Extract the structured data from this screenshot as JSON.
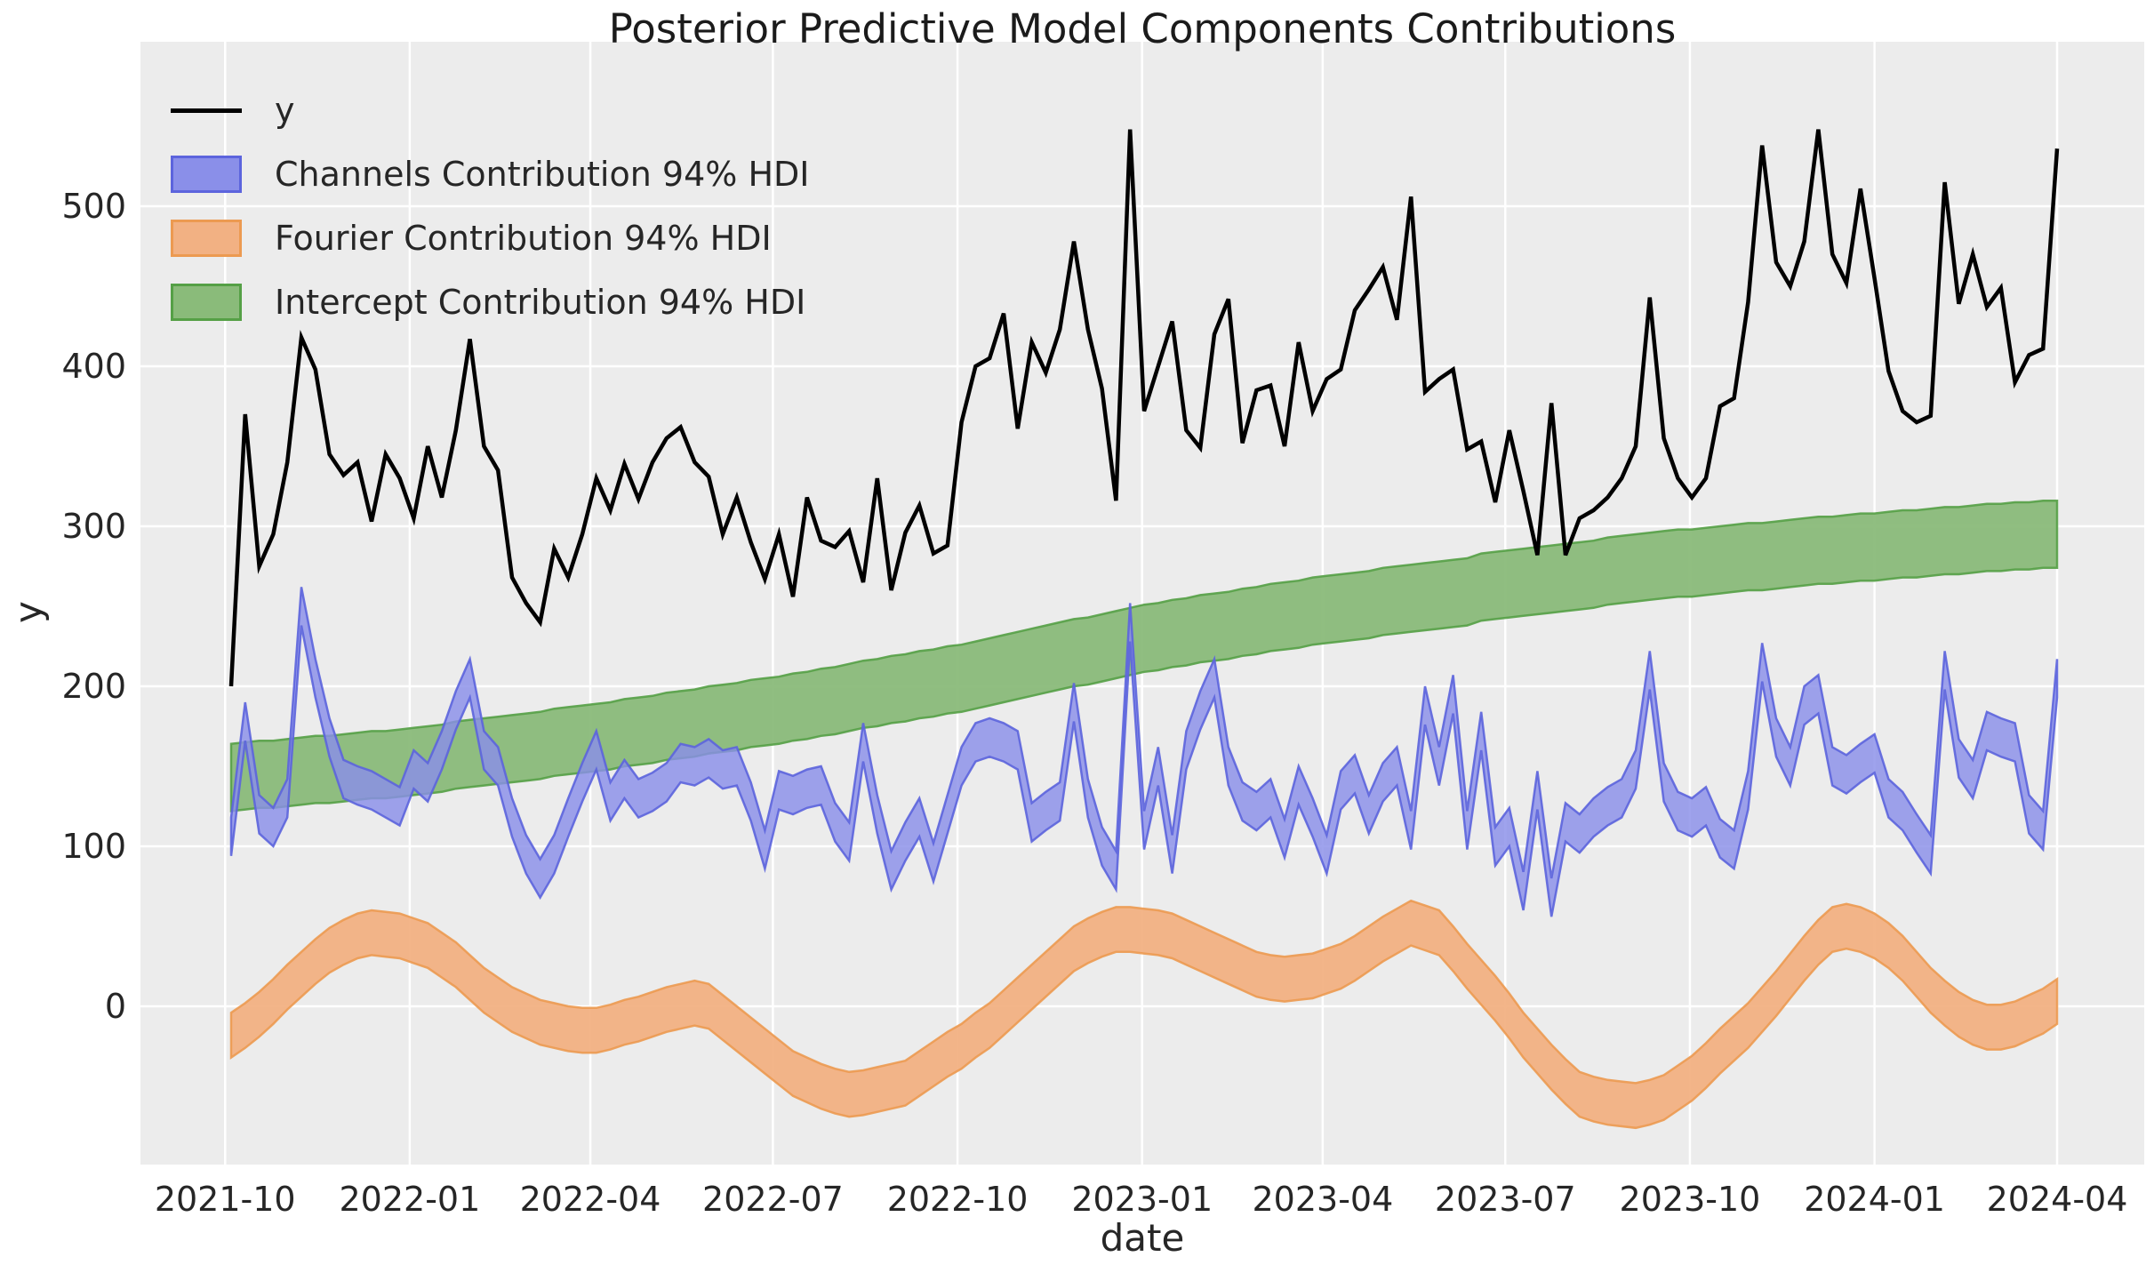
{
  "title": "Posterior Predictive Model Components Contributions",
  "axes": {
    "xlabel": "date",
    "ylabel": "y",
    "x_tick_labels": [
      "2021-10",
      "2022-01",
      "2022-04",
      "2022-07",
      "2022-10",
      "2023-01",
      "2023-04",
      "2023-07",
      "2023-10",
      "2024-01",
      "2024-04"
    ],
    "y_tick_labels": [
      "0",
      "100",
      "200",
      "300",
      "400",
      "500"
    ],
    "y_ticks": [
      0,
      100,
      200,
      300,
      400,
      500
    ]
  },
  "legend": {
    "items": [
      {
        "label": "y",
        "marker": "line",
        "fill": "#000000",
        "edge": "#000000"
      },
      {
        "label": "Channels Contribution 94% HDI",
        "marker": "patch",
        "fill": "#8a8fe9",
        "edge": "#5c64dd"
      },
      {
        "label": "Fourier Contribution 94% HDI",
        "marker": "patch",
        "fill": "#f2b183",
        "edge": "#ec9a51"
      },
      {
        "label": "Intercept Contribution 94% HDI",
        "marker": "patch",
        "fill": "#8abb7a",
        "edge": "#55a046"
      }
    ]
  },
  "colors": {
    "figure_bg": "#ffffff",
    "axes_bg": "#ececec",
    "grid": "#ffffff",
    "text": "#262626",
    "y_line": "#000000",
    "channels_fill": "#8a8fe9",
    "channels_edge": "#5c64dd",
    "fourier_fill": "#f2b183",
    "fourier_edge": "#ec9a51",
    "intercept_fill": "#8abb7a",
    "intercept_edge": "#55a046"
  },
  "chart_data": {
    "type": "line+hdi-bands",
    "x_start_date": "2021-10-04",
    "x_freq_days": 7,
    "n_points": 131,
    "x_tick_day_offsets": [
      -3,
      89,
      179,
      270,
      362,
      454,
      544,
      635,
      727,
      819,
      910
    ],
    "ylim": [
      -97,
      600
    ],
    "grid": true,
    "legend_position": "upper left",
    "series": [
      {
        "name": "y",
        "type": "line",
        "values": [
          200,
          370,
          275,
          295,
          340,
          418,
          398,
          345,
          332,
          340,
          303,
          345,
          330,
          305,
          350,
          318,
          360,
          417,
          350,
          335,
          268,
          252,
          240,
          286,
          268,
          295,
          330,
          310,
          339,
          317,
          340,
          355,
          362,
          340,
          331,
          295,
          318,
          290,
          267,
          295,
          256,
          318,
          291,
          287,
          297,
          265,
          330,
          260,
          296,
          313,
          283,
          288,
          365,
          400,
          405,
          433,
          361,
          415,
          396,
          423,
          478,
          423,
          386,
          316,
          548,
          372,
          400,
          428,
          360,
          349,
          420,
          442,
          352,
          385,
          388,
          350,
          415,
          372,
          392,
          398,
          435,
          448,
          462,
          429,
          506,
          384,
          392,
          398,
          348,
          353,
          315,
          360,
          322,
          282,
          377,
          282,
          305,
          310,
          318,
          330,
          350,
          443,
          355,
          330,
          318,
          330,
          375,
          380,
          440,
          538,
          465,
          450,
          478,
          548,
          470,
          452,
          511,
          455,
          397,
          372,
          365,
          369,
          515,
          439,
          470,
          437,
          449,
          390,
          407,
          411,
          536
        ]
      },
      {
        "name": "Channels Contribution 94% HDI",
        "type": "band",
        "half_width": 12,
        "center": [
          106,
          178,
          120,
          112,
          130,
          250,
          205,
          168,
          142,
          138,
          135,
          130,
          125,
          148,
          140,
          160,
          185,
          205,
          160,
          150,
          118,
          95,
          80,
          95,
          118,
          140,
          160,
          128,
          142,
          130,
          134,
          140,
          152,
          150,
          155,
          148,
          150,
          128,
          98,
          135,
          132,
          136,
          138,
          115,
          103,
          165,
          120,
          85,
          103,
          118,
          90,
          120,
          150,
          165,
          168,
          165,
          160,
          115,
          122,
          128,
          190,
          130,
          100,
          85,
          240,
          110,
          150,
          95,
          160,
          185,
          205,
          150,
          128,
          122,
          130,
          105,
          138,
          118,
          95,
          135,
          145,
          120,
          140,
          150,
          110,
          188,
          150,
          195,
          110,
          172,
          100,
          112,
          72,
          135,
          68,
          115,
          108,
          118,
          125,
          130,
          148,
          210,
          140,
          122,
          118,
          125,
          105,
          98,
          135,
          215,
          168,
          150,
          188,
          195,
          150,
          145,
          152,
          158,
          130,
          122,
          108,
          95,
          210,
          155,
          142,
          172,
          168,
          165,
          120,
          110,
          205
        ]
      },
      {
        "name": "Fourier Contribution 94% HDI",
        "type": "band",
        "half_width": 14,
        "center": [
          -18,
          -12,
          -5,
          3,
          12,
          20,
          28,
          35,
          40,
          44,
          46,
          45,
          44,
          41,
          38,
          32,
          26,
          18,
          10,
          4,
          -2,
          -6,
          -10,
          -12,
          -14,
          -15,
          -15,
          -13,
          -10,
          -8,
          -5,
          -2,
          0,
          2,
          0,
          -7,
          -14,
          -21,
          -28,
          -35,
          -42,
          -46,
          -50,
          -53,
          -55,
          -54,
          -52,
          -50,
          -48,
          -42,
          -36,
          -30,
          -25,
          -18,
          -12,
          -4,
          4,
          12,
          20,
          28,
          36,
          41,
          45,
          48,
          48,
          47,
          46,
          44,
          40,
          36,
          32,
          28,
          24,
          20,
          18,
          17,
          18,
          19,
          22,
          25,
          30,
          36,
          42,
          47,
          52,
          49,
          46,
          36,
          25,
          15,
          5,
          -6,
          -18,
          -28,
          -38,
          -47,
          -55,
          -58,
          -60,
          -61,
          -62,
          -60,
          -57,
          -51,
          -45,
          -37,
          -28,
          -20,
          -12,
          -2,
          8,
          19,
          30,
          40,
          48,
          50,
          48,
          44,
          38,
          30,
          20,
          10,
          2,
          -5,
          -10,
          -13,
          -13,
          -11,
          -7,
          -3,
          3
        ]
      },
      {
        "name": "Intercept Contribution 94% HDI",
        "type": "band",
        "half_width": 21,
        "center": [
          143,
          144,
          145,
          145,
          146,
          147,
          148,
          148,
          149,
          150,
          151,
          151,
          152,
          153,
          154,
          155,
          157,
          158,
          159,
          160,
          161,
          162,
          163,
          165,
          166,
          167,
          168,
          169,
          171,
          172,
          173,
          175,
          176,
          177,
          179,
          180,
          181,
          183,
          184,
          185,
          187,
          188,
          190,
          191,
          193,
          195,
          196,
          198,
          199,
          201,
          202,
          204,
          205,
          207,
          209,
          211,
          213,
          215,
          217,
          219,
          221,
          222,
          224,
          226,
          228,
          230,
          231,
          233,
          234,
          236,
          237,
          238,
          240,
          241,
          243,
          244,
          245,
          247,
          248,
          249,
          250,
          251,
          253,
          254,
          255,
          256,
          257,
          258,
          259,
          262,
          263,
          264,
          265,
          266,
          267,
          268,
          269,
          270,
          272,
          273,
          274,
          275,
          276,
          277,
          277,
          278,
          279,
          280,
          281,
          281,
          282,
          283,
          284,
          285,
          285,
          286,
          287,
          287,
          288,
          289,
          289,
          290,
          291,
          291,
          292,
          293,
          293,
          294,
          294,
          295,
          295
        ]
      }
    ]
  }
}
